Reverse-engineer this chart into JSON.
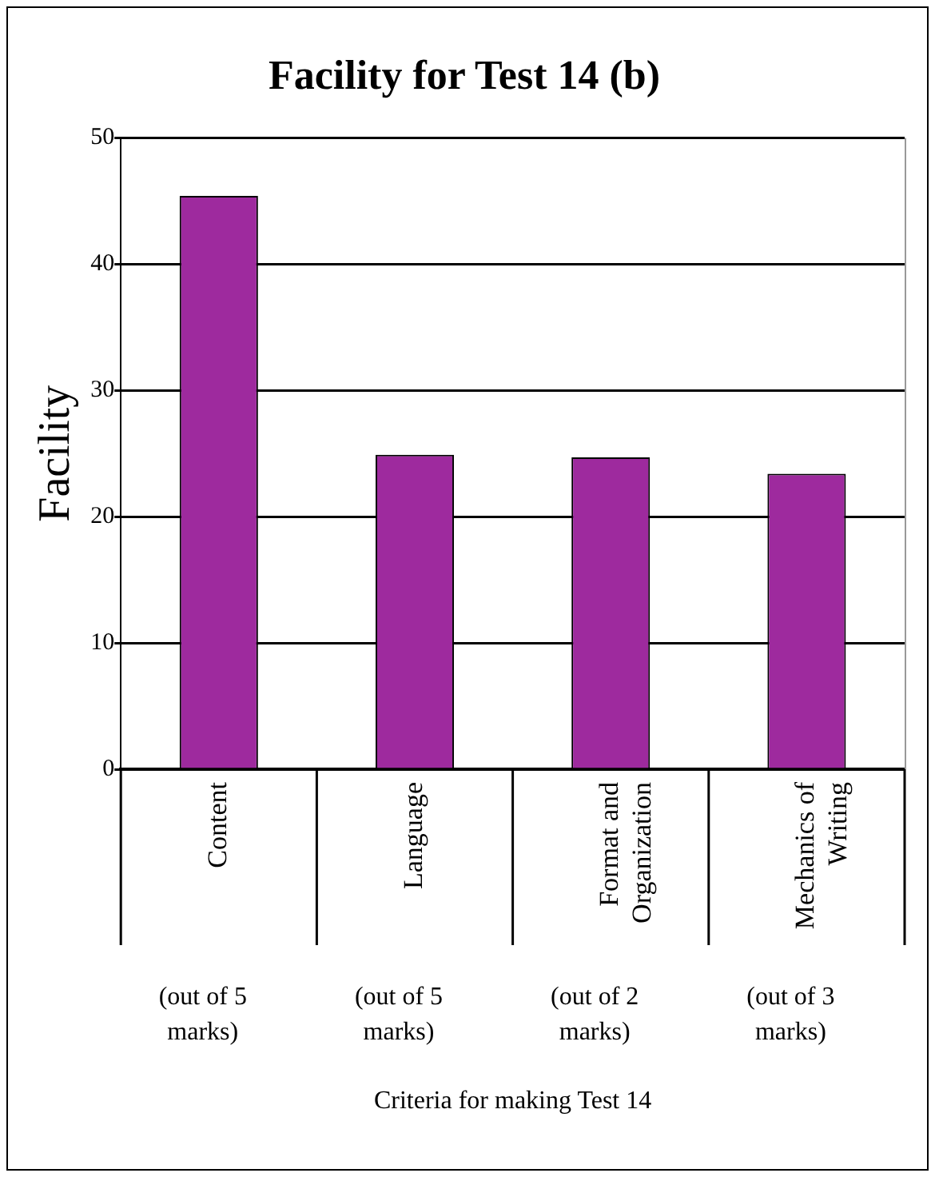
{
  "chart_data": {
    "type": "bar",
    "title": "Facility for Test 14 (b)",
    "ylabel": "Facility",
    "categories": [
      "Content",
      "Language",
      "Format and Organization",
      "Mechanics of Writing"
    ],
    "values": [
      45.4,
      24.9,
      24.7,
      23.4
    ],
    "color": "#9e2a9e",
    "ylim": [
      0,
      50
    ],
    "yticks": [
      0,
      10,
      20,
      30,
      40,
      50
    ],
    "grid": "y",
    "annotations": [
      "(out of 5 marks)",
      "(out of 5 marks)",
      "(out of 2 marks)",
      "(out of 3 marks)",
      "Criteria for making Test 14"
    ]
  }
}
